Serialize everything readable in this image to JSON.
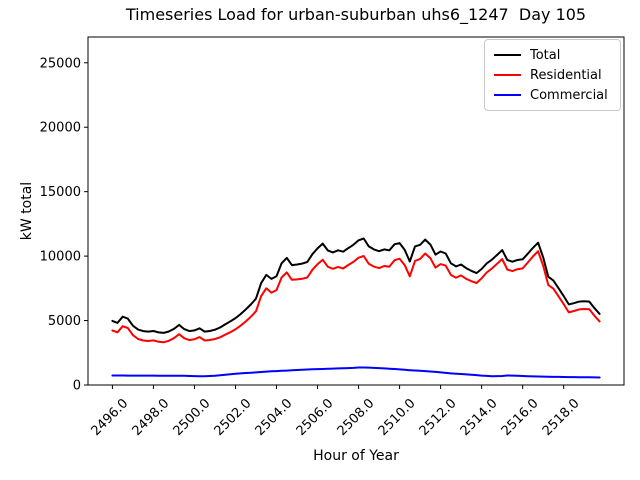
{
  "chart_data": {
    "type": "line",
    "title": "Timeseries Load for urban-suburban uhs6_1247  Day 105",
    "xlabel": "Hour of Year",
    "ylabel": "kW total",
    "xlim": [
      2494.81,
      2520.94
    ],
    "ylim": [
      0,
      27000
    ],
    "grid": false,
    "legend_position": "upper right",
    "xticks": [
      2496,
      2498,
      2500,
      2502,
      2504,
      2506,
      2508,
      2510,
      2512,
      2514,
      2516,
      2518
    ],
    "xtick_labels": [
      "2496.0",
      "2498.0",
      "2500.0",
      "2502.0",
      "2504.0",
      "2506.0",
      "2508.0",
      "2510.0",
      "2512.0",
      "2514.0",
      "2516.0",
      "2518.0"
    ],
    "yticks": [
      0,
      5000,
      10000,
      15000,
      20000,
      25000
    ],
    "ytick_labels": [
      "0",
      "5000",
      "10000",
      "15000",
      "20000",
      "25000"
    ],
    "x_start": 2496.0,
    "x_step": 0.25,
    "x_end": 2519.75,
    "series": [
      {
        "name": "Total",
        "color": "#000000",
        "values": [
          4970,
          4820,
          5300,
          5150,
          4600,
          4300,
          4180,
          4140,
          4190,
          4080,
          4040,
          4150,
          4350,
          4660,
          4340,
          4180,
          4240,
          4400,
          4140,
          4190,
          4290,
          4460,
          4700,
          4940,
          5190,
          5500,
          5860,
          6250,
          6700,
          7900,
          8540,
          8230,
          8440,
          9440,
          9860,
          9300,
          9350,
          9420,
          9540,
          10150,
          10600,
          10970,
          10440,
          10290,
          10450,
          10340,
          10620,
          10880,
          11230,
          11370,
          10750,
          10520,
          10380,
          10520,
          10440,
          10920,
          11010,
          10480,
          9580,
          10750,
          10880,
          11280,
          10890,
          10120,
          10360,
          10200,
          9440,
          9200,
          9350,
          9060,
          8850,
          8680,
          9000,
          9440,
          9720,
          10090,
          10470,
          9700,
          9570,
          9700,
          9750,
          10190,
          10640,
          11040,
          9900,
          8400,
          8100,
          7500,
          6900,
          6250,
          6350,
          6470,
          6500,
          6470,
          5960,
          5520
        ]
      },
      {
        "name": "Residential",
        "color": "#ff0000",
        "values": [
          4230,
          4085,
          4565,
          4420,
          3870,
          3570,
          3450,
          3410,
          3460,
          3355,
          3315,
          3430,
          3630,
          3945,
          3630,
          3480,
          3550,
          3720,
          3455,
          3490,
          3570,
          3700,
          3900,
          4100,
          4320,
          4600,
          4930,
          5300,
          5720,
          6890,
          7500,
          7170,
          7360,
          8340,
          8740,
          8160,
          8190,
          8240,
          8340,
          8935,
          9370,
          9725,
          9180,
          9015,
          9160,
          9040,
          9310,
          9550,
          9875,
          10010,
          9400,
          9190,
          9070,
          9230,
          9175,
          9680,
          9800,
          9300,
          8430,
          9625,
          9780,
          10205,
          9840,
          9105,
          9380,
          9260,
          8540,
          8325,
          8500,
          8235,
          8050,
          7915,
          8270,
          8735,
          9040,
          9400,
          9770,
          8960,
          8840,
          8985,
          9050,
          9505,
          9970,
          10380,
          9250,
          7760,
          7470,
          6875,
          6280,
          5635,
          5740,
          5865,
          5900,
          5875,
          5370,
          4935
        ]
      },
      {
        "name": "Commercial",
        "color": "#0000ff",
        "values": [
          740,
          735,
          735,
          730,
          730,
          730,
          730,
          730,
          730,
          725,
          725,
          720,
          720,
          715,
          710,
          700,
          690,
          680,
          685,
          700,
          720,
          760,
          800,
          840,
          870,
          900,
          930,
          950,
          980,
          1010,
          1040,
          1060,
          1080,
          1100,
          1120,
          1140,
          1160,
          1180,
          1200,
          1215,
          1230,
          1245,
          1260,
          1275,
          1290,
          1300,
          1310,
          1330,
          1355,
          1360,
          1350,
          1330,
          1310,
          1290,
          1265,
          1240,
          1210,
          1180,
          1150,
          1125,
          1100,
          1075,
          1050,
          1015,
          980,
          940,
          900,
          875,
          850,
          825,
          800,
          765,
          730,
          705,
          680,
          690,
          700,
          740,
          730,
          715,
          700,
          685,
          670,
          660,
          650,
          640,
          630,
          625,
          620,
          615,
          610,
          605,
          600,
          595,
          590,
          585
        ]
      }
    ]
  }
}
